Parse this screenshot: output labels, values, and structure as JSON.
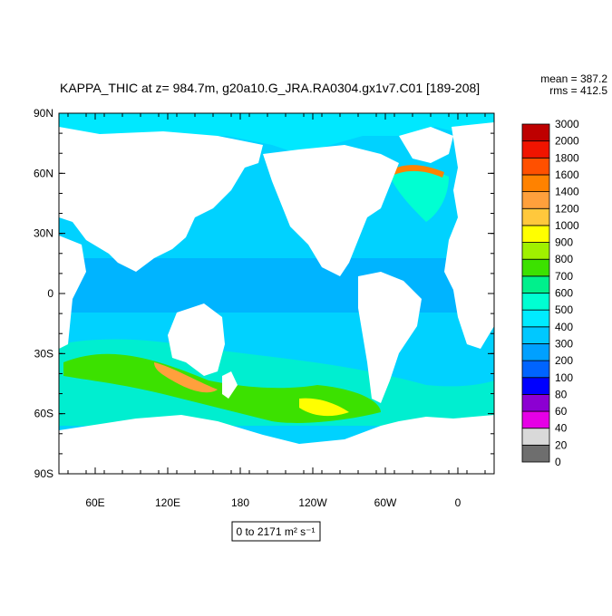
{
  "title": "KAPPA_THIC at z= 984.7m, g20a10.G_JRA.RA0304.gx1v7.C01 [189-208]",
  "stats": {
    "mean": "mean = 387.2",
    "rms": "rms = 412.5"
  },
  "lat_labels": [
    "90N",
    "60N",
    "30N",
    "0",
    "30S",
    "60S",
    "90S"
  ],
  "lon_labels": [
    "60E",
    "120E",
    "180",
    "120W",
    "60W",
    "0"
  ],
  "colorbar": {
    "levels": [
      0,
      20,
      40,
      60,
      80,
      100,
      200,
      300,
      400,
      500,
      600,
      700,
      800,
      900,
      1000,
      1200,
      1400,
      1600,
      1800,
      2000,
      3000
    ],
    "colors": [
      "#6e6e6e",
      "#d9d9d9",
      "#e600e6",
      "#8c00d2",
      "#0000ff",
      "#0064ff",
      "#00a0ff",
      "#00c8ff",
      "#00ebff",
      "#00ffd2",
      "#00f08c",
      "#3ce100",
      "#a0f000",
      "#ffff00",
      "#ffc83c",
      "#ffa03c",
      "#ff8200",
      "#ff5000",
      "#f01400",
      "#be0000"
    ]
  },
  "range_label": "0 to 2171 m² s⁻¹"
}
